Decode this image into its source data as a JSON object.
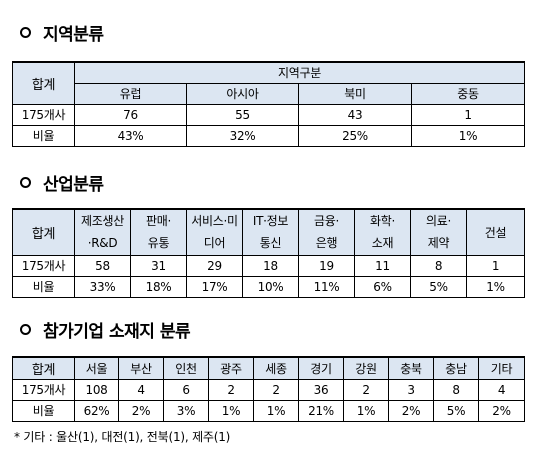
{
  "region": {
    "title": "지역분류",
    "total_label": "합계",
    "group_label": "지역구분",
    "columns": [
      "유럽",
      "아시아",
      "북미",
      "중동"
    ],
    "rows": [
      {
        "label": "175개사",
        "values": [
          "76",
          "55",
          "43",
          "1"
        ]
      },
      {
        "label": "비율",
        "values": [
          "43%",
          "32%",
          "25%",
          "1%"
        ]
      }
    ]
  },
  "industry": {
    "title": "산업분류",
    "total_label": "합계",
    "columns": [
      [
        "제조생산",
        "·R&D"
      ],
      [
        "판매·",
        "유통"
      ],
      [
        "서비스·미",
        "디어"
      ],
      [
        "IT·정보",
        "통신"
      ],
      [
        "금융·",
        "은행"
      ],
      [
        "화학·",
        "소재"
      ],
      [
        "의료·",
        "제약"
      ],
      [
        "건설"
      ]
    ],
    "rows": [
      {
        "label": "175개사",
        "values": [
          "58",
          "31",
          "29",
          "18",
          "19",
          "11",
          "8",
          "1"
        ]
      },
      {
        "label": "비율",
        "values": [
          "33%",
          "18%",
          "17%",
          "10%",
          "11%",
          "6%",
          "5%",
          "1%"
        ]
      }
    ]
  },
  "location": {
    "title": "참가기업 소재지 분류",
    "total_label": "합계",
    "columns": [
      "서울",
      "부산",
      "인천",
      "광주",
      "세종",
      "경기",
      "강원",
      "충북",
      "충남",
      "기타"
    ],
    "rows": [
      {
        "label": "175개사",
        "values": [
          "108",
          "4",
          "6",
          "2",
          "2",
          "36",
          "2",
          "3",
          "8",
          "4"
        ]
      },
      {
        "label": "비율",
        "values": [
          "62%",
          "2%",
          "3%",
          "1%",
          "1%",
          "21%",
          "1%",
          "2%",
          "5%",
          "2%"
        ]
      }
    ]
  },
  "footnote": "* 기타 : 울산(1), 대전(1), 전북(1), 제주(1)",
  "colors": {
    "header_bg": "#dce6f2"
  }
}
